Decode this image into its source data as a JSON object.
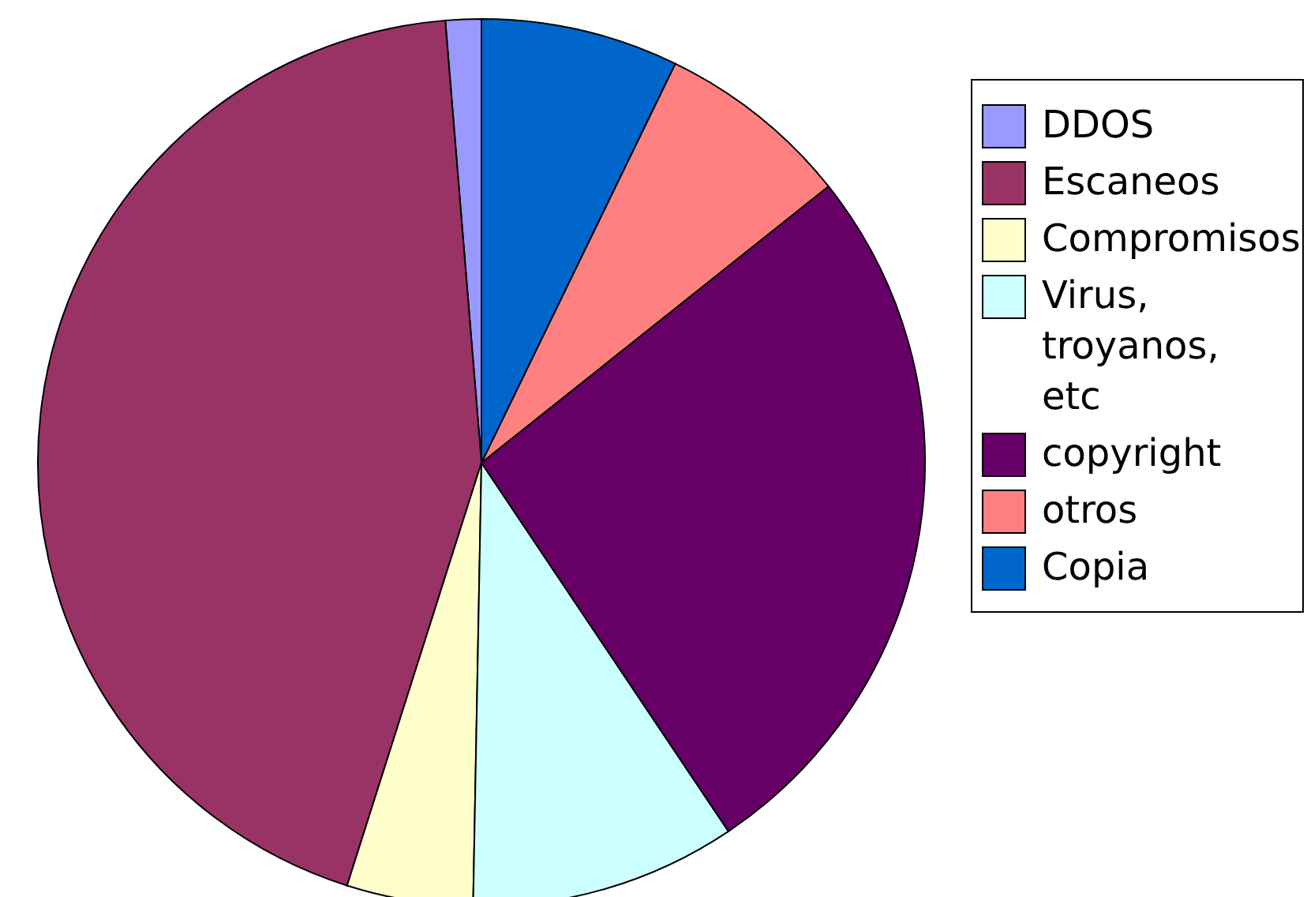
{
  "chart_data": {
    "type": "pie",
    "categories": [
      "DDOS",
      "Escaneos",
      "Compromisos",
      "Virus, troyanos, etc",
      "copyright",
      "otros",
      "Copia"
    ],
    "values": [
      1.3,
      43.8,
      4.6,
      9.7,
      26.3,
      7.1,
      7.2
    ],
    "colors": [
      "#9999ff",
      "#993366",
      "#ffffcc",
      "#ccffff",
      "#660066",
      "#ff8080",
      "#0066cc"
    ],
    "legend": "right"
  }
}
